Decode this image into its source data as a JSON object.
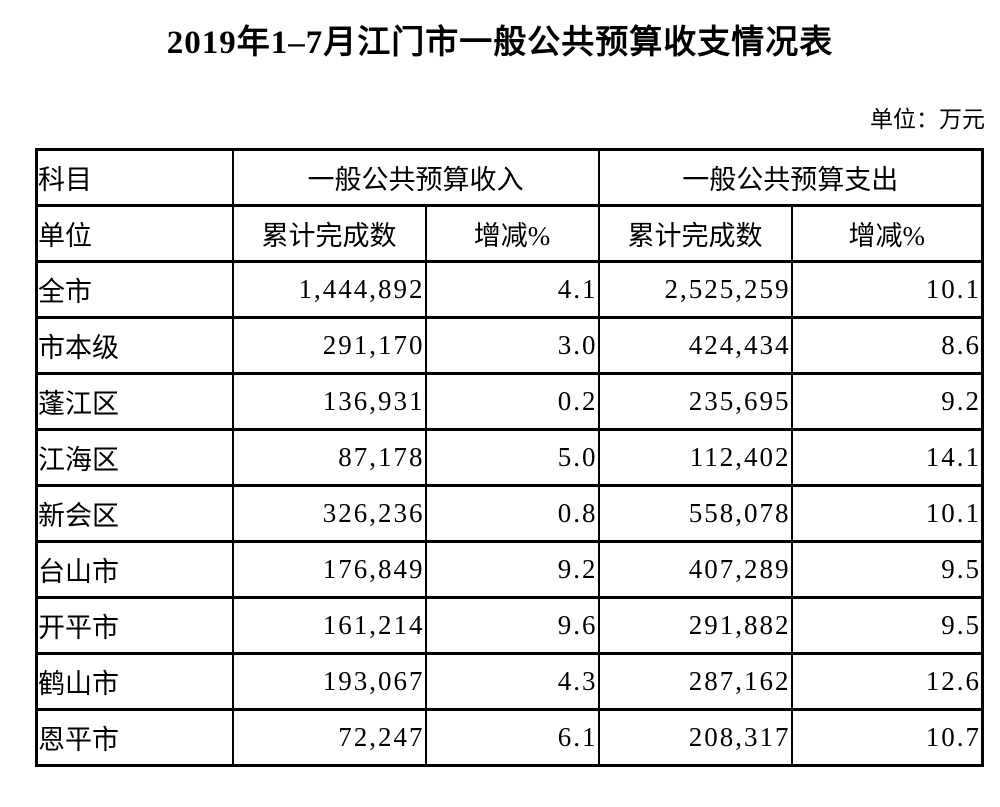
{
  "title": "2019年1–7月江门市一般公共预算收支情况表",
  "unit_note": "单位：万元",
  "colors": {
    "text": "#000000",
    "background": "#ffffff",
    "border": "#000000"
  },
  "table": {
    "header_row1": {
      "subject": "科目",
      "revenue_group": "一般公共预算收入",
      "expenditure_group": "一般公共预算支出"
    },
    "header_row2": {
      "unit": "单位",
      "rev_cumulative": "累计完成数",
      "rev_change": "增减%",
      "exp_cumulative": "累计完成数",
      "exp_change": "增减%"
    },
    "rows": [
      {
        "region": "全市",
        "rev_cumulative": "1,444,892",
        "rev_change": "4.1",
        "exp_cumulative": "2,525,259",
        "exp_change": "10.1"
      },
      {
        "region": "市本级",
        "rev_cumulative": "291,170",
        "rev_change": "3.0",
        "exp_cumulative": "424,434",
        "exp_change": "8.6"
      },
      {
        "region": "蓬江区",
        "rev_cumulative": "136,931",
        "rev_change": "0.2",
        "exp_cumulative": "235,695",
        "exp_change": "9.2"
      },
      {
        "region": "江海区",
        "rev_cumulative": "87,178",
        "rev_change": "5.0",
        "exp_cumulative": "112,402",
        "exp_change": "14.1"
      },
      {
        "region": "新会区",
        "rev_cumulative": "326,236",
        "rev_change": "0.8",
        "exp_cumulative": "558,078",
        "exp_change": "10.1"
      },
      {
        "region": "台山市",
        "rev_cumulative": "176,849",
        "rev_change": "9.2",
        "exp_cumulative": "407,289",
        "exp_change": "9.5"
      },
      {
        "region": "开平市",
        "rev_cumulative": "161,214",
        "rev_change": "9.6",
        "exp_cumulative": "291,882",
        "exp_change": "9.5"
      },
      {
        "region": "鹤山市",
        "rev_cumulative": "193,067",
        "rev_change": "4.3",
        "exp_cumulative": "287,162",
        "exp_change": "12.6"
      },
      {
        "region": "恩平市",
        "rev_cumulative": "72,247",
        "rev_change": "6.1",
        "exp_cumulative": "208,317",
        "exp_change": "10.7"
      }
    ]
  }
}
